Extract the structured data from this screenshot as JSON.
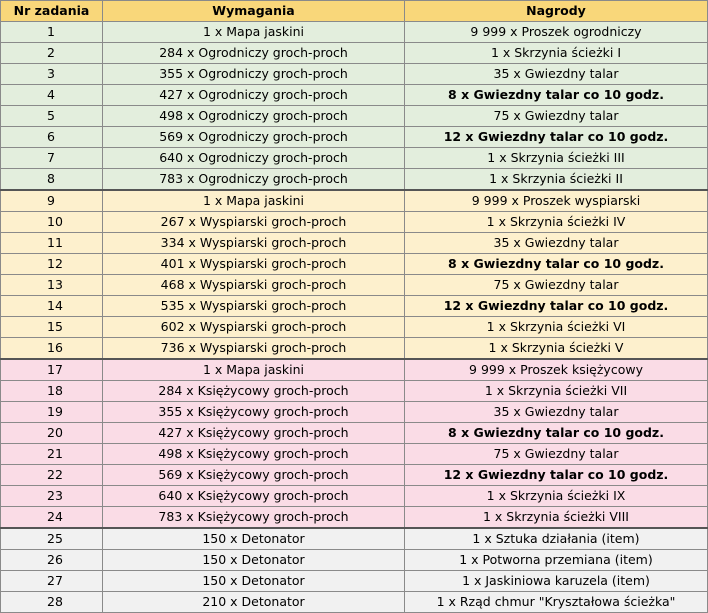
{
  "headers": {
    "nr": "Nr zadania",
    "requirements": "Wymagania",
    "rewards": "Nagrody"
  },
  "rows": [
    {
      "nr": "1",
      "req": "1 x Mapa jaskini",
      "reward": "9 999 x Proszek ogrodniczy",
      "bold": false,
      "group": "green"
    },
    {
      "nr": "2",
      "req": "284 x Ogrodniczy groch-proch",
      "reward": "1 x Skrzynia ścieżki I",
      "bold": false,
      "group": "green"
    },
    {
      "nr": "3",
      "req": "355 x Ogrodniczy groch-proch",
      "reward": "35 x Gwiezdny talar",
      "bold": false,
      "group": "green"
    },
    {
      "nr": "4",
      "req": "427 x Ogrodniczy groch-proch",
      "reward": "8 x Gwiezdny talar co 10 godz.",
      "bold": true,
      "group": "green"
    },
    {
      "nr": "5",
      "req": "498 x Ogrodniczy groch-proch",
      "reward": "75 x Gwiezdny talar",
      "bold": false,
      "group": "green"
    },
    {
      "nr": "6",
      "req": "569 x Ogrodniczy groch-proch",
      "reward": "12 x Gwiezdny talar co 10 godz.",
      "bold": true,
      "group": "green"
    },
    {
      "nr": "7",
      "req": "640 x Ogrodniczy groch-proch",
      "reward": "1 x Skrzynia ścieżki III",
      "bold": false,
      "group": "green"
    },
    {
      "nr": "8",
      "req": "783 x Ogrodniczy groch-proch",
      "reward": "1 x Skrzynia ścieżki II",
      "bold": false,
      "group": "green"
    },
    {
      "nr": "9",
      "req": "1 x Mapa jaskini",
      "reward": "9 999 x Proszek wyspiarski",
      "bold": false,
      "group": "yellow"
    },
    {
      "nr": "10",
      "req": "267 x Wyspiarski groch-proch",
      "reward": "1 x Skrzynia ścieżki IV",
      "bold": false,
      "group": "yellow"
    },
    {
      "nr": "11",
      "req": "334 x Wyspiarski groch-proch",
      "reward": "35 x Gwiezdny talar",
      "bold": false,
      "group": "yellow"
    },
    {
      "nr": "12",
      "req": "401 x Wyspiarski groch-proch",
      "reward": "8 x Gwiezdny talar co 10 godz.",
      "bold": true,
      "group": "yellow"
    },
    {
      "nr": "13",
      "req": "468 x Wyspiarski groch-proch",
      "reward": "75 x Gwiezdny talar",
      "bold": false,
      "group": "yellow"
    },
    {
      "nr": "14",
      "req": "535 x Wyspiarski groch-proch",
      "reward": "12 x Gwiezdny talar co 10 godz.",
      "bold": true,
      "group": "yellow"
    },
    {
      "nr": "15",
      "req": "602 x Wyspiarski groch-proch",
      "reward": "1 x Skrzynia ścieżki VI",
      "bold": false,
      "group": "yellow"
    },
    {
      "nr": "16",
      "req": "736 x Wyspiarski groch-proch",
      "reward": "1 x Skrzynia ścieżki V",
      "bold": false,
      "group": "yellow"
    },
    {
      "nr": "17",
      "req": "1 x Mapa jaskini",
      "reward": "9 999 x Proszek księżycowy",
      "bold": false,
      "group": "pink"
    },
    {
      "nr": "18",
      "req": "284 x Księżycowy groch-proch",
      "reward": "1 x Skrzynia ścieżki VII",
      "bold": false,
      "group": "pink"
    },
    {
      "nr": "19",
      "req": "355 x Księżycowy groch-proch",
      "reward": "35 x Gwiezdny talar",
      "bold": false,
      "group": "pink"
    },
    {
      "nr": "20",
      "req": "427 x Księżycowy groch-proch",
      "reward": "8 x Gwiezdny talar co 10 godz.",
      "bold": true,
      "group": "pink"
    },
    {
      "nr": "21",
      "req": "498 x Księżycowy groch-proch",
      "reward": "75 x Gwiezdny talar",
      "bold": false,
      "group": "pink"
    },
    {
      "nr": "22",
      "req": "569 x Księżycowy groch-proch",
      "reward": "12 x Gwiezdny talar co 10 godz.",
      "bold": true,
      "group": "pink"
    },
    {
      "nr": "23",
      "req": "640 x Księżycowy groch-proch",
      "reward": "1 x Skrzynia ścieżki IX",
      "bold": false,
      "group": "pink"
    },
    {
      "nr": "24",
      "req": "783 x Księżycowy groch-proch",
      "reward": "1 x Skrzynia ścieżki VIII",
      "bold": false,
      "group": "pink"
    },
    {
      "nr": "25",
      "req": "150 x Detonator",
      "reward": "1 x Sztuka działania (item)",
      "bold": false,
      "group": "gray"
    },
    {
      "nr": "26",
      "req": "150 x Detonator",
      "reward": "1 x Potworna przemiana (item)",
      "bold": false,
      "group": "gray"
    },
    {
      "nr": "27",
      "req": "150 x Detonator",
      "reward": "1 x Jaskiniowa karuzela (item)",
      "bold": false,
      "group": "gray"
    },
    {
      "nr": "28",
      "req": "210 x Detonator",
      "reward": "1 x Rząd chmur \"Kryształowa ścieżka\"",
      "bold": false,
      "group": "gray"
    }
  ],
  "colors": {
    "header": "#f9d77a",
    "green": "#e3eedd",
    "yellow": "#fdf0cd",
    "pink": "#fadce6",
    "gray": "#f1f1f1"
  }
}
